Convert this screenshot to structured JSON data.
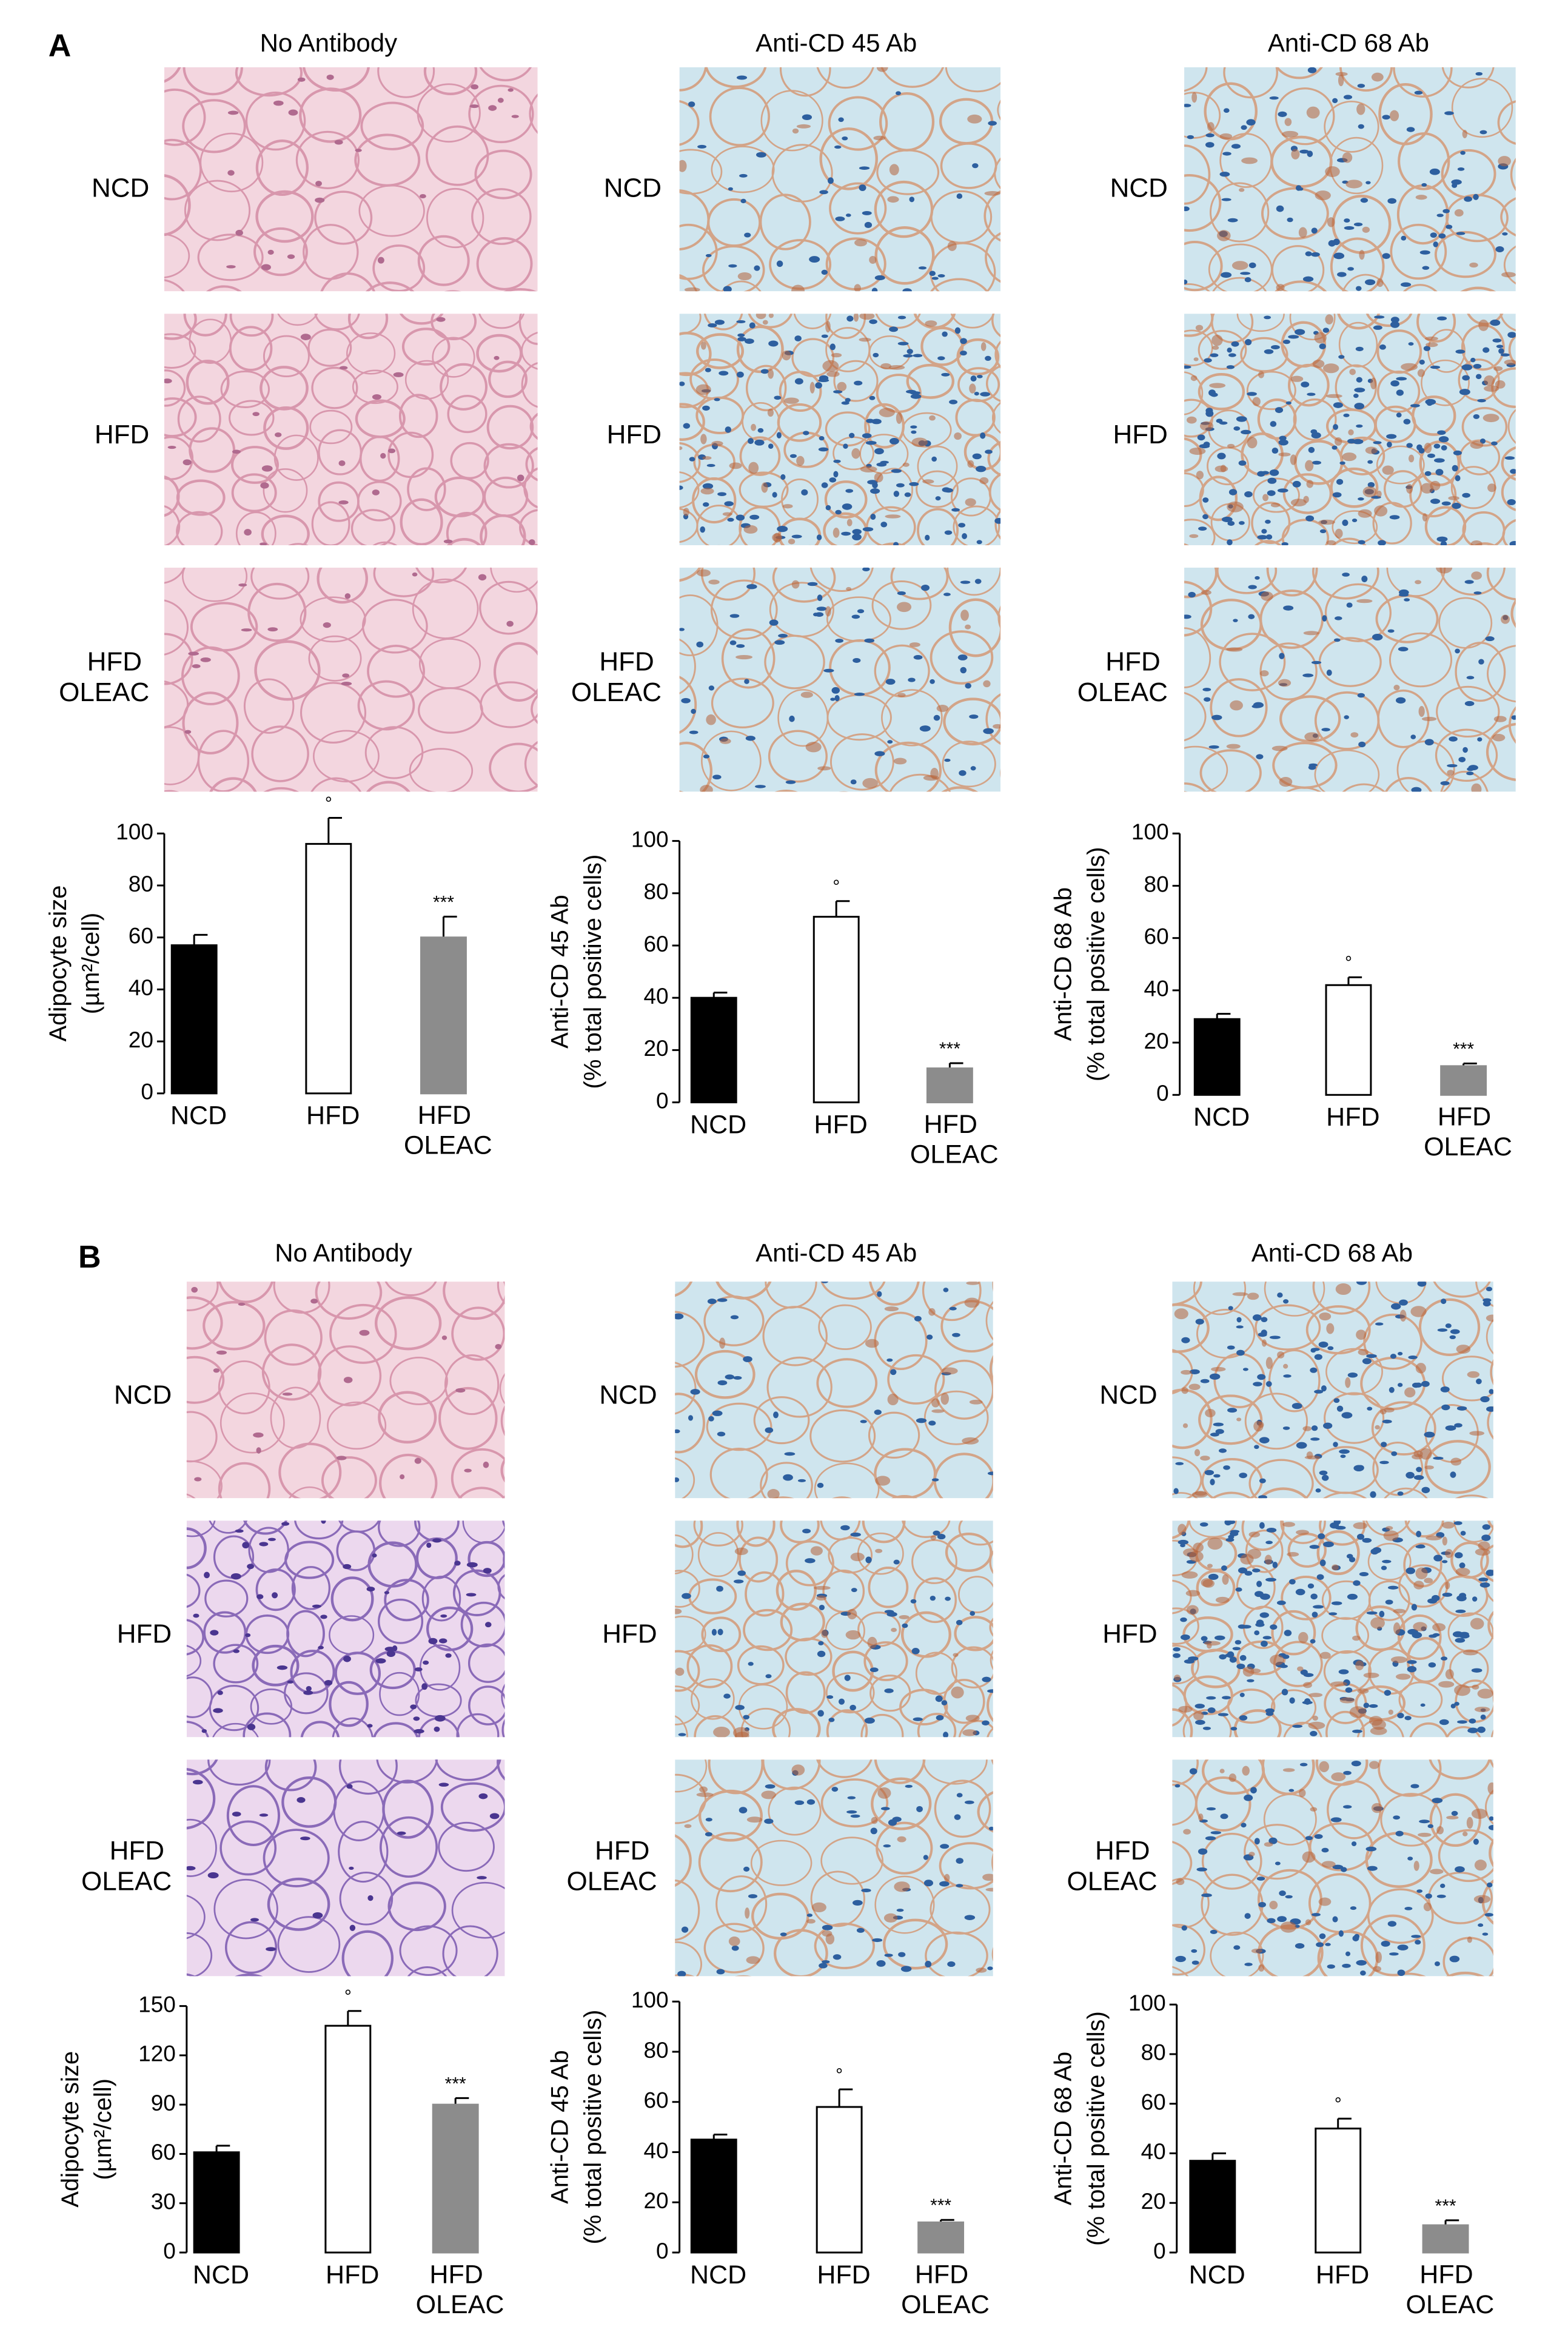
{
  "figure": {
    "panels": [
      {
        "label": "A",
        "columns": [
          "No Antibody",
          "Anti-CD 45 Ab",
          "Anti-CD 68 Ab"
        ],
        "rows": [
          "NCD",
          "HFD",
          "HFD OLEAC"
        ]
      },
      {
        "label": "B",
        "columns": [
          "No Antibody",
          "Anti-CD 45 Ab",
          "Anti-CD 68 Ab"
        ],
        "rows": [
          "NCD",
          "HFD",
          "HFD OLEAC"
        ]
      }
    ]
  },
  "chart_data": [
    {
      "type": "bar",
      "ylabel": [
        "Adipocyte size",
        "(µm²/cell)"
      ],
      "categories": [
        "NCD",
        "HFD",
        "HFD OLEAC"
      ],
      "values": [
        57,
        96,
        60
      ],
      "errors": [
        4,
        10,
        8
      ],
      "colors": [
        "#000000",
        "#ffffff",
        "#8c8c8c"
      ],
      "annotations": [
        null,
        "°",
        "***"
      ],
      "ylim": [
        0,
        100
      ],
      "yticks": [
        0,
        20,
        40,
        60,
        80,
        100
      ]
    },
    {
      "type": "bar",
      "ylabel": [
        "Anti-CD 45 Ab",
        "(% total positive cells)"
      ],
      "categories": [
        "NCD",
        "HFD",
        "HFD OLEAC"
      ],
      "values": [
        40,
        71,
        13
      ],
      "errors": [
        2,
        6,
        2
      ],
      "colors": [
        "#000000",
        "#ffffff",
        "#8c8c8c"
      ],
      "annotations": [
        null,
        "°",
        "***"
      ],
      "ylim": [
        0,
        100
      ],
      "yticks": [
        0,
        20,
        40,
        60,
        80,
        100
      ]
    },
    {
      "type": "bar",
      "ylabel": [
        "Anti-CD 68 Ab",
        "(% total positive cells)"
      ],
      "categories": [
        "NCD",
        "HFD",
        "HFD OLEAC"
      ],
      "values": [
        29,
        42,
        11
      ],
      "errors": [
        2,
        3,
        1
      ],
      "colors": [
        "#000000",
        "#ffffff",
        "#8c8c8c"
      ],
      "annotations": [
        null,
        "°",
        "***"
      ],
      "ylim": [
        0,
        100
      ],
      "yticks": [
        0,
        20,
        40,
        60,
        80,
        100
      ]
    },
    {
      "type": "bar",
      "ylabel": [
        "Adipocyte size",
        "(µm²/cell)"
      ],
      "categories": [
        "NCD",
        "HFD",
        "HFD OLEAC"
      ],
      "values": [
        61,
        138,
        90
      ],
      "errors": [
        4,
        9,
        4
      ],
      "colors": [
        "#000000",
        "#ffffff",
        "#8c8c8c"
      ],
      "annotations": [
        null,
        "°",
        "***"
      ],
      "ylim": [
        0,
        150
      ],
      "yticks": [
        0,
        30,
        60,
        90,
        120,
        150
      ]
    },
    {
      "type": "bar",
      "ylabel": [
        "Anti-CD 45 Ab",
        "(% total positive cells)"
      ],
      "categories": [
        "NCD",
        "HFD",
        "HFD OLEAC"
      ],
      "values": [
        45,
        58,
        12
      ],
      "errors": [
        2,
        7,
        1
      ],
      "colors": [
        "#000000",
        "#ffffff",
        "#8c8c8c"
      ],
      "annotations": [
        null,
        "°",
        "***"
      ],
      "ylim": [
        0,
        100
      ],
      "yticks": [
        0,
        20,
        40,
        60,
        80,
        100
      ]
    },
    {
      "type": "bar",
      "ylabel": [
        "Anti-CD 68 Ab",
        "(% total positive cells)"
      ],
      "categories": [
        "NCD",
        "HFD",
        "HFD OLEAC"
      ],
      "values": [
        37,
        50,
        11
      ],
      "errors": [
        3,
        4,
        2
      ],
      "colors": [
        "#000000",
        "#ffffff",
        "#8c8c8c"
      ],
      "annotations": [
        null,
        "°",
        "***"
      ],
      "ylim": [
        0,
        100
      ],
      "yticks": [
        0,
        20,
        40,
        60,
        80,
        100
      ]
    }
  ]
}
